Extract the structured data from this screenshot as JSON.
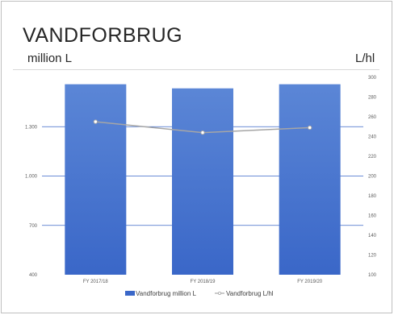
{
  "header": {
    "title": "VANDFORBRUG",
    "unit_left": "million L",
    "unit_right": "L/hl"
  },
  "colors": {
    "bar": "#3a67c8",
    "bar_top": "#5b86d6",
    "line": "#a6a6a6",
    "grid": "#3a67c8"
  },
  "chart_data": {
    "type": "bar",
    "categories": [
      "FY 2017/18",
      "FY 2018/19",
      "FY 2019/20"
    ],
    "series": [
      {
        "name": "Vandforbrug million L",
        "type": "bar",
        "axis": "left",
        "values": [
          1558,
          1533,
          1558
        ]
      },
      {
        "name": "Vandforbrug L/hl",
        "type": "line",
        "axis": "right",
        "values": [
          255,
          244,
          249
        ]
      }
    ],
    "y_left": {
      "ylim": [
        400,
        1600
      ],
      "ticks": [
        "400",
        "700",
        "1.000",
        "1.300"
      ],
      "tick_values": [
        400,
        700,
        1000,
        1300
      ]
    },
    "y_right": {
      "ylim": [
        100,
        300
      ],
      "ticks": [
        "100",
        "120",
        "140",
        "160",
        "180",
        "200",
        "220",
        "240",
        "260",
        "280",
        "300"
      ],
      "tick_values": [
        100,
        120,
        140,
        160,
        180,
        200,
        220,
        240,
        260,
        280,
        300
      ]
    },
    "grid": true,
    "legend_position": "bottom"
  }
}
